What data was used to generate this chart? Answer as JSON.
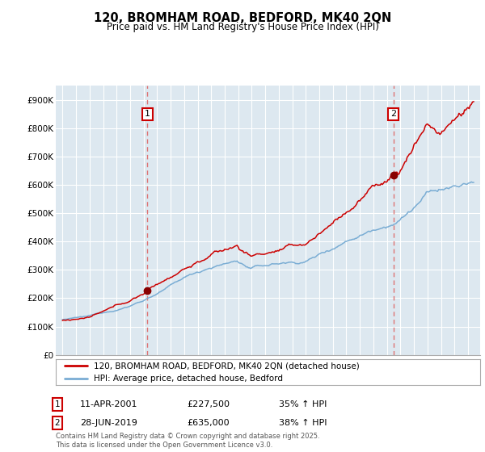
{
  "title_line1": "120, BROMHAM ROAD, BEDFORD, MK40 2QN",
  "title_line2": "Price paid vs. HM Land Registry's House Price Index (HPI)",
  "ylim": [
    0,
    950000
  ],
  "yticks": [
    0,
    100000,
    200000,
    300000,
    400000,
    500000,
    600000,
    700000,
    800000,
    900000
  ],
  "ytick_labels": [
    "£0",
    "£100K",
    "£200K",
    "£300K",
    "£400K",
    "£500K",
    "£600K",
    "£700K",
    "£800K",
    "£900K"
  ],
  "background_color": "#ffffff",
  "plot_bg_color": "#dde8f0",
  "grid_color": "#ffffff",
  "sale1_date": 2001.28,
  "sale1_price": 227500,
  "sale1_label": "1",
  "sale2_date": 2019.49,
  "sale2_price": 635000,
  "sale2_label": "2",
  "red_line_color": "#cc0000",
  "blue_line_color": "#7aadd4",
  "vline_color": "#dd6666",
  "marker_color": "#880000",
  "legend_red_label": "120, BROMHAM ROAD, BEDFORD, MK40 2QN (detached house)",
  "legend_blue_label": "HPI: Average price, detached house, Bedford",
  "table_row1": [
    "1",
    "11-APR-2001",
    "£227,500",
    "35% ↑ HPI"
  ],
  "table_row2": [
    "2",
    "28-JUN-2019",
    "£635,000",
    "38% ↑ HPI"
  ],
  "footer": "Contains HM Land Registry data © Crown copyright and database right 2025.\nThis data is licensed under the Open Government Licence v3.0.",
  "title_fontsize": 10.5,
  "subtitle_fontsize": 8.5,
  "tick_fontsize": 7.5,
  "legend_fontsize": 7.5,
  "table_fontsize": 8
}
